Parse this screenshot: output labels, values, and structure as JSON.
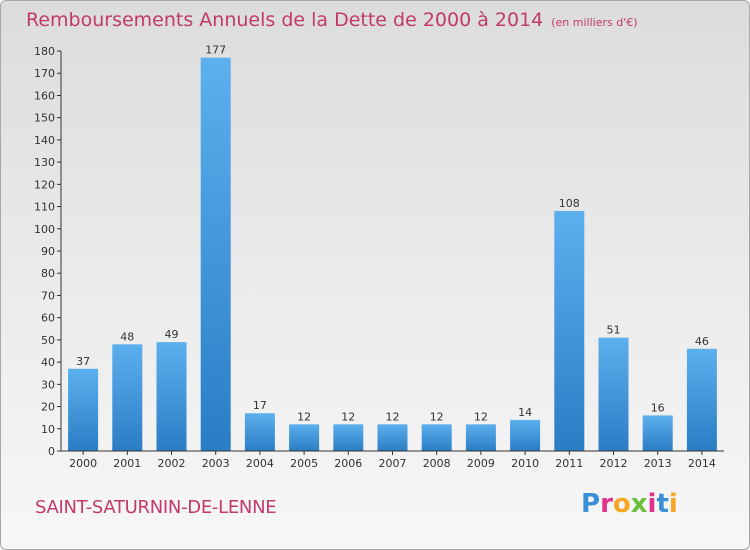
{
  "chart_data": {
    "type": "bar",
    "title": "Remboursements Annuels de la Dette de 2000 à 2014",
    "unit_note": "(en milliers d'€)",
    "categories": [
      "2000",
      "2001",
      "2002",
      "2003",
      "2004",
      "2005",
      "2006",
      "2007",
      "2008",
      "2009",
      "2010",
      "2011",
      "2012",
      "2013",
      "2014"
    ],
    "values": [
      37,
      48,
      49,
      177,
      17,
      12,
      12,
      12,
      12,
      12,
      14,
      108,
      51,
      16,
      46
    ],
    "ylim": [
      0,
      180
    ],
    "yticks": [
      0,
      10,
      20,
      30,
      40,
      50,
      60,
      70,
      80,
      90,
      100,
      110,
      120,
      130,
      140,
      150,
      160,
      170,
      180
    ],
    "grid": false,
    "bar_color": "#3a8fd6"
  },
  "footer": {
    "commune": "SAINT-SATURNIN-DE-LENNE"
  },
  "brand": {
    "letters": [
      "P",
      "r",
      "o",
      "x",
      "i",
      "t",
      "i"
    ],
    "colors": [
      "#3b8fd8",
      "#e0318b",
      "#f5a623",
      "#6cbf3b",
      "#e0318b",
      "#3b8fd8",
      "#f5a623"
    ]
  }
}
